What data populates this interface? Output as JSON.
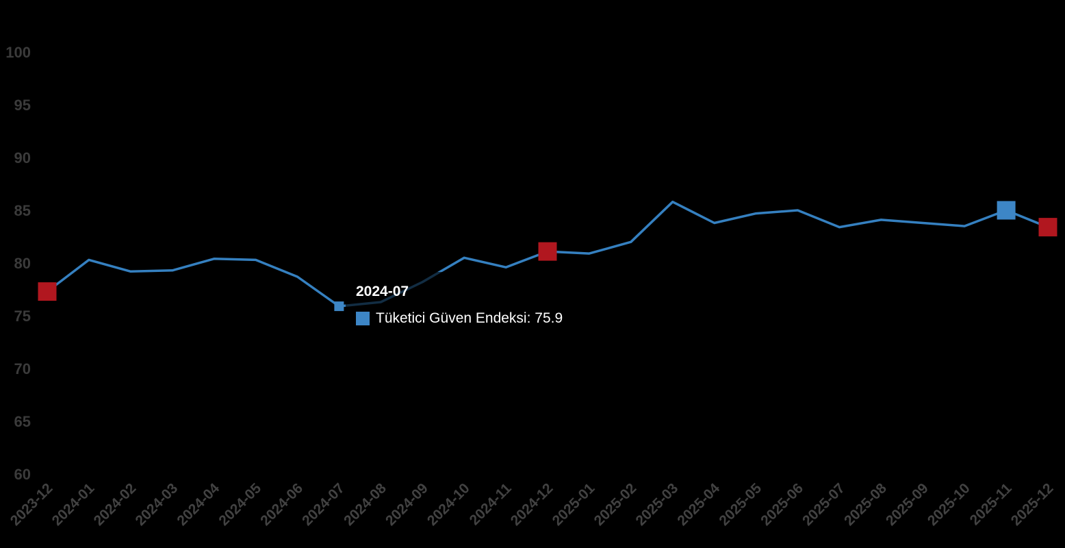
{
  "page": {
    "background": "#000000"
  },
  "chart_data": {
    "type": "line",
    "title": "",
    "xlabel": "",
    "ylabel": "",
    "grid": false,
    "legend_position": "none",
    "x_label_rotation": -45,
    "y_ticks": [
      100,
      95,
      90,
      85,
      80,
      75,
      70,
      65,
      60
    ],
    "ylim": [
      59.5,
      102.3
    ],
    "x": [
      "2023-12",
      "2024-01",
      "2024-02",
      "2024-03",
      "2024-04",
      "2024-05",
      "2024-06",
      "2024-07",
      "2024-08",
      "2024-09",
      "2024-10",
      "2024-11",
      "2024-12",
      "2025-01",
      "2025-02",
      "2025-03",
      "2025-04",
      "2025-05",
      "2025-06",
      "2025-07",
      "2025-08",
      "2025-09",
      "2025-10",
      "2025-11",
      "2025-12"
    ],
    "series": [
      {
        "name": "Tüketici Güven Endeksi",
        "color": "#3580c0",
        "line_width": 3.5,
        "values": [
          77.3,
          80.3,
          79.2,
          79.3,
          80.4,
          80.3,
          78.7,
          75.9,
          76.3,
          78.2,
          80.5,
          79.6,
          81.1,
          80.9,
          82.0,
          85.8,
          83.8,
          84.7,
          85.0,
          83.4,
          84.1,
          83.8,
          83.5,
          85.0,
          83.4
        ]
      }
    ],
    "highlighted_points": [
      {
        "x": "2023-12",
        "index": 0,
        "shape": "square",
        "color": "#b1171f",
        "size": 27
      },
      {
        "x": "2024-07",
        "index": 7,
        "shape": "square",
        "color": "#3d86c6",
        "size": 14
      },
      {
        "x": "2024-12",
        "index": 12,
        "shape": "square",
        "color": "#b1171f",
        "size": 27
      },
      {
        "x": "2025-11",
        "index": 23,
        "shape": "square",
        "color": "#3d86c6",
        "size": 27
      },
      {
        "x": "2025-12",
        "index": 24,
        "shape": "square",
        "color": "#b1171f",
        "size": 27
      }
    ]
  },
  "tooltip": {
    "title": "2024-07",
    "series_name": "Tüketici Güven Endeksi",
    "value": "75.9",
    "label_text": "Tüketici Güven Endeksi: 75.9",
    "swatch_color": "#3d86c6",
    "background": "rgba(0, 0, 0, 0.65)"
  }
}
